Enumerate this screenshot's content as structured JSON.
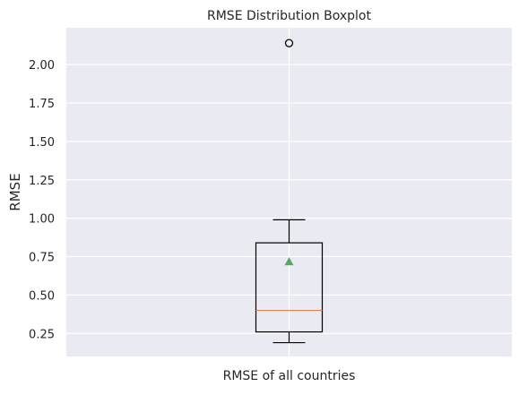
{
  "chart_data": {
    "type": "boxplot",
    "title": "RMSE Distribution Boxplot",
    "xlabel": "",
    "ylabel": "RMSE",
    "categories": [
      "RMSE of all countries"
    ],
    "boxes": [
      {
        "category": "RMSE of all countries",
        "whisker_low": 0.19,
        "q1": 0.26,
        "median": 0.4,
        "q3": 0.84,
        "whisker_high": 0.99,
        "mean": 0.72,
        "outliers": [
          2.14
        ]
      }
    ],
    "ylim": [
      0.1,
      2.24
    ],
    "yticks": [
      0.25,
      0.5,
      0.75,
      1.0,
      1.25,
      1.5,
      1.75,
      2.0
    ],
    "ytick_labels": [
      "0.25",
      "0.50",
      "0.75",
      "1.00",
      "1.25",
      "1.50",
      "1.75",
      "2.00"
    ],
    "grid": true,
    "colors": {
      "plot_background": "#eaeaf2",
      "grid": "#ffffff",
      "box": "#000000",
      "median": "#dd8452",
      "mean_marker": "#55a868",
      "outlier": "#000000",
      "text": "#262626"
    }
  }
}
